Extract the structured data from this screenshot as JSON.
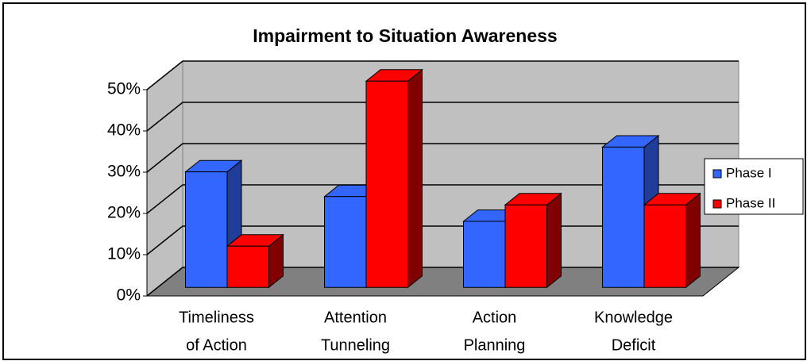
{
  "chart_data": {
    "type": "bar3d",
    "title": "Impairment to Situation Awareness",
    "categories": [
      [
        "Timeliness",
        "of Action"
      ],
      [
        "Attention",
        "Tunneling"
      ],
      [
        "Action",
        "Planning"
      ],
      [
        "Knowledge",
        "Deficit"
      ]
    ],
    "series": [
      {
        "name": "Phase I",
        "color": "#3366ff",
        "values": [
          28,
          22,
          16,
          34
        ]
      },
      {
        "name": "Phase II",
        "color": "#ff0000",
        "values": [
          10,
          50,
          20,
          20
        ]
      }
    ],
    "ylim": [
      0,
      50
    ],
    "yticks": [
      {
        "value": 0,
        "label": "0%"
      },
      {
        "value": 10,
        "label": "10%"
      },
      {
        "value": 20,
        "label": "20%"
      },
      {
        "value": 30,
        "label": "30%"
      },
      {
        "value": 40,
        "label": "40%"
      },
      {
        "value": 50,
        "label": "50%"
      }
    ],
    "grid": true,
    "legend": "right"
  }
}
